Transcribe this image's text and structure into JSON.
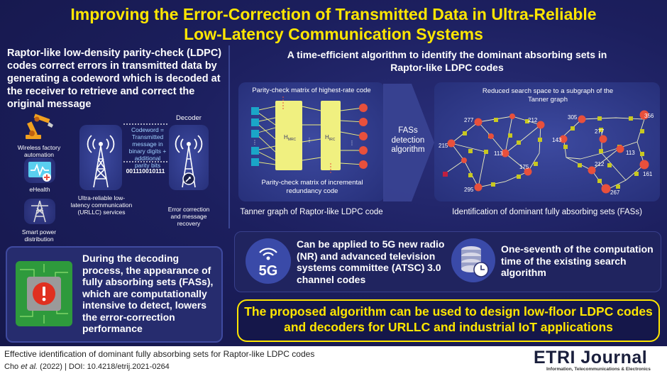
{
  "title": {
    "line1": "Improving the Error-Correction of Transmitted Data in Ultra-Reliable",
    "line2": "Low-Latency Communication Systems"
  },
  "left": {
    "heading": "Raptor-like low-density parity-check (LDPC) codes correct errors in transmitted data by generating a codeword which is decoded at the receiver to retrieve and correct the original message",
    "apps": [
      {
        "label": "Wireless factory automation",
        "icon": "robot-arm-icon"
      },
      {
        "label": "eHealth",
        "icon": "health-monitor-icon"
      },
      {
        "label": "Smart power distribution",
        "icon": "power-tower-icon"
      }
    ],
    "tower_label": "Ultra-reliable low-latency communication (URLLC) services",
    "codeword_label": "Codeword = Transmitted message in binary digits + additional parity bits",
    "binary": "001110010111",
    "decoder_title": "Decoder",
    "decoder_label": "Error correction and message recovery",
    "bottom_text": "During the decoding process, the appearance of fully absorbing sets (FASs), which are computationally intensive to detect, lowers the error-correction performance"
  },
  "right": {
    "heading_line1": "A time-efficient algorithm to identify the dominant absorbing sets in",
    "heading_line2": "Raptor-like LDPC codes",
    "tanner": {
      "top_label": "Parity-check matrix of highest-rate code",
      "hmrc": "H",
      "hmrc_sub": "MRC",
      "hirc": "H",
      "hirc_sub": "IRC",
      "bottom_label": "Parity-check matrix of incremental redundancy code",
      "caption": "Tanner graph of Raptor-like LDPC code"
    },
    "arrow_label": "FASs detection algorithm",
    "subgraph": {
      "top_label": "Reduced search space to a subgraph of the Tanner graph",
      "nodes_a": [
        "277",
        "212",
        "215",
        "113",
        "175",
        "295"
      ],
      "nodes_b": [
        "305",
        "356",
        "277",
        "143",
        "113",
        "212",
        "161",
        "267"
      ],
      "caption": "Identification of dominant fully absorbing sets (FASs)"
    },
    "features": [
      {
        "text": "Can be applied to 5G new radio (NR) and advanced television systems committee (ATSC) 3.0 channel codes",
        "icon": "5g-icon",
        "badge": "5G"
      },
      {
        "text": "One-seventh of the computation time of the existing search algorithm",
        "icon": "database-clock-icon"
      }
    ],
    "conclusion": "The proposed algorithm can be used to design low-floor LDPC codes and decoders for URLLC and industrial IoT applications"
  },
  "footer": {
    "title": "Effective identification of dominant fully absorbing sets for Raptor-like LDPC codes",
    "authors": "Cho ",
    "et_al": "et al.",
    "citation": " (2022) | DOI: 10.4218/etrij.2021-0264",
    "logo_etri": "ETRI",
    "logo_journal": " Journal",
    "logo_sub": "Information, Telecommunications & Electronics"
  },
  "colors": {
    "title_yellow": "#ffe600",
    "background": "#1c1f5e",
    "node_red": "#e8503c",
    "node_yellow": "#c8c820",
    "matrix_yellow": "#f0f080",
    "node_cyan": "#1aa5c8"
  }
}
